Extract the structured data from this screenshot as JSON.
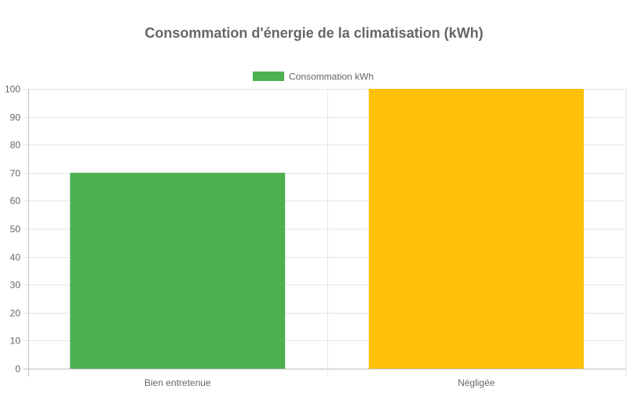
{
  "chart_data": {
    "type": "bar",
    "title": "Consommation d'énergie de la climatisation (kWh)",
    "categories": [
      "Bien entretenue",
      "Négligée"
    ],
    "series": [
      {
        "name": "Consommation kWh",
        "values": [
          70,
          100
        ]
      }
    ],
    "bar_colors": [
      "#4caf50",
      "#ffc107"
    ],
    "legend_color": "#4caf50",
    "ylim": [
      0,
      100
    ],
    "yticks": [
      0,
      10,
      20,
      30,
      40,
      50,
      60,
      70,
      80,
      90,
      100
    ],
    "grid": true,
    "legend_position": "top",
    "text_color": "#666666",
    "grid_color": "#e6e6e6"
  }
}
